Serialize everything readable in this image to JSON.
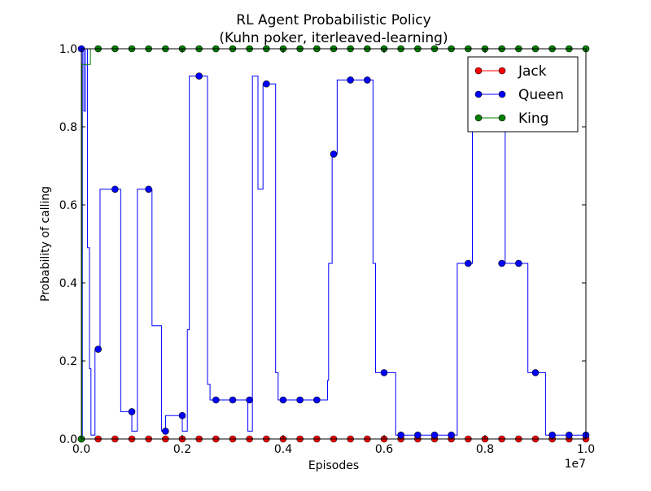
{
  "chart_data": {
    "type": "line",
    "title": "RL Agent Probabilistic Policy",
    "subtitle": "(Kuhn poker, iterleaved-learning)",
    "xlabel": "Episodes",
    "ylabel": "Probability of calling",
    "x_offset_label": "1e7",
    "xlim": [
      0.0,
      1.0
    ],
    "ylim": [
      0.0,
      1.0
    ],
    "x_ticks": [
      "0.0",
      "0.2",
      "0.4",
      "0.6",
      "0.8",
      "1.0"
    ],
    "y_ticks": [
      "0.0",
      "0.2",
      "0.4",
      "0.6",
      "0.8",
      "1.0"
    ],
    "grid": false,
    "legend_position": "top-right",
    "series": [
      {
        "name": "Jack",
        "color": "#ff0000",
        "step": [
          [
            0.0,
            0.0
          ],
          [
            1.0,
            0.0
          ]
        ],
        "markers": [
          [
            0.0,
            0.0
          ],
          [
            0.0333,
            0.0
          ],
          [
            0.0667,
            0.0
          ],
          [
            0.1,
            0.0
          ],
          [
            0.1333,
            0.0
          ],
          [
            0.1667,
            0.0
          ],
          [
            0.2,
            0.0
          ],
          [
            0.2333,
            0.0
          ],
          [
            0.2667,
            0.0
          ],
          [
            0.3,
            0.0
          ],
          [
            0.3333,
            0.0
          ],
          [
            0.3667,
            0.0
          ],
          [
            0.4,
            0.0
          ],
          [
            0.4333,
            0.0
          ],
          [
            0.4667,
            0.0
          ],
          [
            0.5,
            0.0
          ],
          [
            0.5333,
            0.0
          ],
          [
            0.5667,
            0.0
          ],
          [
            0.6,
            0.0
          ],
          [
            0.6333,
            0.0
          ],
          [
            0.6667,
            0.0
          ],
          [
            0.7,
            0.0
          ],
          [
            0.7333,
            0.0
          ],
          [
            0.7667,
            0.0
          ],
          [
            0.8,
            0.0
          ],
          [
            0.8333,
            0.0
          ],
          [
            0.8667,
            0.0
          ],
          [
            0.9,
            0.0
          ],
          [
            0.9333,
            0.0
          ],
          [
            0.9667,
            0.0
          ],
          [
            1.0,
            0.0
          ]
        ]
      },
      {
        "name": "Queen",
        "color": "#0000ff",
        "step": [
          [
            0.0,
            0.0
          ],
          [
            0.002,
            1.0
          ],
          [
            0.005,
            0.84
          ],
          [
            0.008,
            1.0
          ],
          [
            0.012,
            0.49
          ],
          [
            0.016,
            0.18
          ],
          [
            0.019,
            0.01
          ],
          [
            0.027,
            0.23
          ],
          [
            0.037,
            0.64
          ],
          [
            0.078,
            0.07
          ],
          [
            0.1,
            0.02
          ],
          [
            0.111,
            0.64
          ],
          [
            0.14,
            0.29
          ],
          [
            0.159,
            0.02
          ],
          [
            0.167,
            0.06
          ],
          [
            0.2,
            0.02
          ],
          [
            0.21,
            0.28
          ],
          [
            0.214,
            0.93
          ],
          [
            0.25,
            0.14
          ],
          [
            0.255,
            0.1
          ],
          [
            0.33,
            0.02
          ],
          [
            0.339,
            0.93
          ],
          [
            0.35,
            0.64
          ],
          [
            0.36,
            0.91
          ],
          [
            0.385,
            0.17
          ],
          [
            0.39,
            0.1
          ],
          [
            0.488,
            0.15
          ],
          [
            0.49,
            0.45
          ],
          [
            0.497,
            0.73
          ],
          [
            0.507,
            0.92
          ],
          [
            0.578,
            0.45
          ],
          [
            0.583,
            0.17
          ],
          [
            0.623,
            0.01
          ],
          [
            0.745,
            0.45
          ],
          [
            0.775,
            0.8
          ],
          [
            0.84,
            0.45
          ],
          [
            0.885,
            0.17
          ],
          [
            0.92,
            0.01
          ],
          [
            1.0,
            0.01
          ]
        ],
        "markers": [
          [
            0.0,
            1.0
          ],
          [
            0.0333,
            0.23
          ],
          [
            0.0667,
            0.64
          ],
          [
            0.1,
            0.07
          ],
          [
            0.1333,
            0.64
          ],
          [
            0.1667,
            0.02
          ],
          [
            0.2,
            0.06
          ],
          [
            0.2333,
            0.93
          ],
          [
            0.2667,
            0.1
          ],
          [
            0.3,
            0.1
          ],
          [
            0.3333,
            0.1
          ],
          [
            0.3667,
            0.91
          ],
          [
            0.4,
            0.1
          ],
          [
            0.4333,
            0.1
          ],
          [
            0.4667,
            0.1
          ],
          [
            0.5,
            0.73
          ],
          [
            0.5333,
            0.92
          ],
          [
            0.5667,
            0.92
          ],
          [
            0.6,
            0.17
          ],
          [
            0.6333,
            0.01
          ],
          [
            0.6667,
            0.01
          ],
          [
            0.7,
            0.01
          ],
          [
            0.7333,
            0.01
          ],
          [
            0.7667,
            0.45
          ],
          [
            0.8,
            0.82
          ],
          [
            0.8333,
            0.45
          ],
          [
            0.8667,
            0.45
          ],
          [
            0.9,
            0.17
          ],
          [
            0.9333,
            0.01
          ],
          [
            0.9667,
            0.01
          ],
          [
            1.0,
            0.01
          ]
        ]
      },
      {
        "name": "King",
        "color": "#008000",
        "step": [
          [
            0.0,
            0.0
          ],
          [
            0.001,
            0.96
          ],
          [
            0.017,
            0.96
          ],
          [
            0.018,
            1.0
          ],
          [
            1.0,
            1.0
          ]
        ],
        "markers": [
          [
            0.0,
            0.0
          ],
          [
            0.0333,
            1.0
          ],
          [
            0.0667,
            1.0
          ],
          [
            0.1,
            1.0
          ],
          [
            0.1333,
            1.0
          ],
          [
            0.1667,
            1.0
          ],
          [
            0.2,
            1.0
          ],
          [
            0.2333,
            1.0
          ],
          [
            0.2667,
            1.0
          ],
          [
            0.3,
            1.0
          ],
          [
            0.3333,
            1.0
          ],
          [
            0.3667,
            1.0
          ],
          [
            0.4,
            1.0
          ],
          [
            0.4333,
            1.0
          ],
          [
            0.4667,
            1.0
          ],
          [
            0.5,
            1.0
          ],
          [
            0.5333,
            1.0
          ],
          [
            0.5667,
            1.0
          ],
          [
            0.6,
            1.0
          ],
          [
            0.6333,
            1.0
          ],
          [
            0.6667,
            1.0
          ],
          [
            0.7,
            1.0
          ],
          [
            0.7333,
            1.0
          ],
          [
            0.7667,
            1.0
          ],
          [
            0.8,
            1.0
          ],
          [
            0.8333,
            1.0
          ],
          [
            0.8667,
            1.0
          ],
          [
            0.9,
            1.0
          ],
          [
            0.9333,
            1.0
          ],
          [
            0.9667,
            1.0
          ],
          [
            1.0,
            1.0
          ]
        ]
      }
    ]
  }
}
